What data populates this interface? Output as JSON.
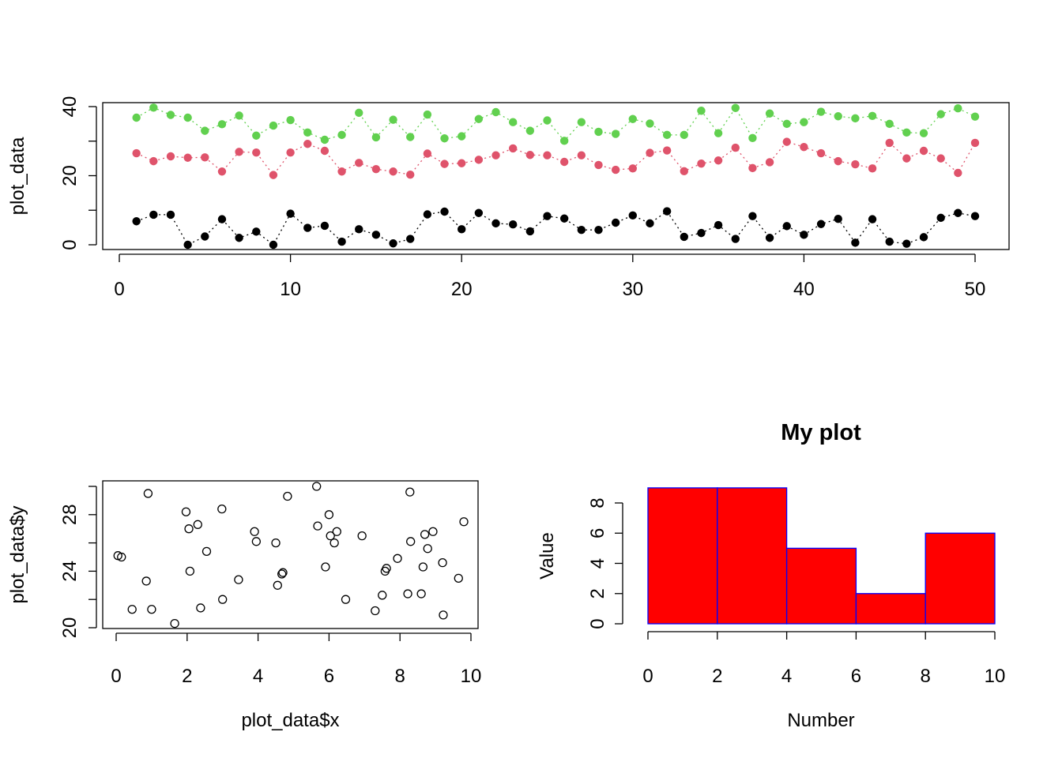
{
  "chart_data": [
    {
      "type": "scatter",
      "panel": "top",
      "title": "",
      "xlabel": "",
      "ylabel": "plot_data",
      "xlim": [
        0,
        50
      ],
      "ylim": [
        0,
        40
      ],
      "xticks": [
        0,
        10,
        20,
        30,
        40,
        50
      ],
      "yticks": [
        0,
        20,
        40
      ],
      "grid": false,
      "x": [
        1,
        2,
        3,
        4,
        5,
        6,
        7,
        8,
        9,
        10,
        11,
        12,
        13,
        14,
        15,
        16,
        17,
        18,
        19,
        20,
        21,
        22,
        23,
        24,
        25,
        26,
        27,
        28,
        29,
        30,
        31,
        32,
        33,
        34,
        35,
        36,
        37,
        38,
        39,
        40,
        41,
        42,
        43,
        44,
        45,
        46,
        47,
        48,
        49,
        50
      ],
      "series": [
        {
          "color": "#000000",
          "values": [
            6.8,
            8.7,
            8.7,
            0.0,
            2.4,
            7.4,
            2.0,
            3.8,
            0.0,
            9.0,
            4.9,
            5.5,
            0.9,
            4.5,
            2.9,
            0.4,
            1.7,
            8.8,
            9.6,
            4.5,
            9.2,
            6.2,
            5.9,
            3.9,
            8.3,
            7.6,
            4.3,
            4.3,
            6.4,
            8.5,
            6.2,
            9.7,
            2.3,
            3.4,
            5.7,
            1.7,
            8.3,
            2.0,
            5.4,
            2.9,
            6.0,
            7.5,
            0.6,
            7.4,
            0.9,
            0.3,
            2.2,
            7.8,
            9.2,
            8.3
          ]
        },
        {
          "color": "#DF536B",
          "values": [
            26.5,
            24.2,
            25.6,
            25.2,
            25.3,
            21.2,
            26.9,
            26.7,
            20.2,
            26.7,
            29.2,
            27.2,
            21.2,
            23.7,
            21.9,
            21.2,
            20.3,
            26.4,
            23.4,
            23.6,
            24.6,
            25.9,
            27.9,
            26.0,
            25.9,
            24.0,
            25.9,
            23.1,
            21.7,
            22.1,
            26.6,
            27.3,
            21.3,
            23.5,
            24.4,
            28.1,
            22.2,
            23.9,
            29.8,
            28.3,
            26.5,
            24.2,
            23.3,
            22.1,
            29.5,
            25.0,
            27.2,
            25.0,
            20.8,
            29.5
          ]
        },
        {
          "color": "#61D04F",
          "values": [
            36.8,
            39.7,
            37.6,
            36.8,
            33.0,
            34.9,
            37.4,
            31.6,
            34.5,
            36.1,
            32.5,
            30.4,
            31.8,
            38.2,
            31.1,
            36.2,
            31.2,
            37.7,
            30.8,
            31.4,
            36.4,
            38.4,
            35.5,
            33.0,
            36.0,
            30.1,
            35.5,
            32.7,
            32.1,
            36.4,
            35.1,
            31.8,
            31.8,
            38.8,
            32.3,
            39.6,
            30.9,
            38.0,
            35.0,
            35.5,
            38.5,
            37.2,
            36.6,
            37.3,
            35.0,
            32.5,
            32.3,
            37.8,
            39.5,
            37.1
          ]
        }
      ]
    },
    {
      "type": "scatter",
      "panel": "bottom-left",
      "title": "",
      "xlabel": "plot_data$x",
      "ylabel": "plot_data$y",
      "xlim": [
        0,
        10
      ],
      "ylim": [
        20,
        30
      ],
      "xticks": [
        0,
        2,
        4,
        6,
        8,
        10
      ],
      "yticks": [
        20,
        24,
        28
      ],
      "grid": false,
      "x": [
        0.05,
        0.15,
        0.45,
        0.85,
        0.9,
        1.0,
        1.65,
        1.97,
        2.05,
        2.08,
        2.3,
        2.38,
        2.55,
        2.98,
        3.0,
        3.45,
        3.9,
        3.95,
        4.5,
        4.55,
        4.67,
        4.7,
        4.83,
        5.65,
        5.68,
        5.9,
        6.0,
        6.04,
        6.15,
        6.22,
        6.47,
        6.93,
        7.3,
        7.5,
        7.58,
        7.62,
        7.93,
        8.22,
        8.28,
        8.3,
        8.6,
        8.65,
        8.7,
        8.78,
        8.93,
        9.2,
        9.22,
        9.65,
        9.8
      ],
      "y": [
        25.1,
        25.0,
        21.3,
        23.3,
        29.5,
        21.3,
        20.3,
        28.2,
        27.0,
        24.0,
        27.3,
        21.4,
        25.4,
        28.4,
        22.0,
        23.4,
        26.8,
        26.1,
        26.0,
        23.0,
        23.8,
        23.9,
        29.3,
        30.0,
        27.2,
        24.3,
        28.0,
        26.5,
        26.0,
        26.8,
        22.0,
        26.5,
        21.2,
        22.3,
        24.0,
        24.2,
        24.9,
        22.4,
        29.6,
        26.1,
        22.4,
        24.3,
        26.6,
        25.6,
        26.8,
        24.6,
        20.9,
        23.5,
        27.5
      ]
    },
    {
      "type": "bar",
      "panel": "bottom-right",
      "title": "My plot",
      "xlabel": "Number",
      "ylabel": "Value",
      "bins": [
        [
          0,
          2
        ],
        [
          2,
          4
        ],
        [
          4,
          6
        ],
        [
          6,
          8
        ],
        [
          8,
          10
        ]
      ],
      "values": [
        9,
        9,
        5,
        2,
        6
      ],
      "xlim": [
        0,
        10
      ],
      "ylim": [
        0,
        9
      ],
      "xticks": [
        0,
        2,
        4,
        6,
        8,
        10
      ],
      "yticks": [
        0,
        2,
        4,
        6,
        8
      ],
      "fill": "#FF0000",
      "border": "#0000FF",
      "grid": false
    }
  ]
}
